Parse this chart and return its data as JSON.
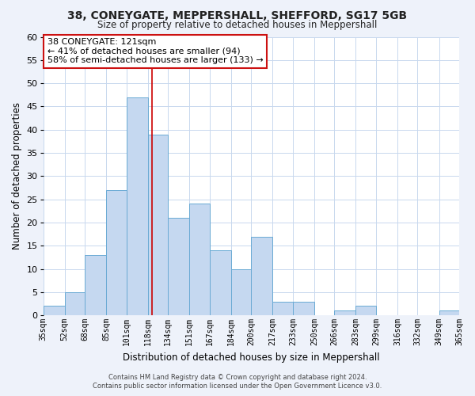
{
  "title": "38, CONEYGATE, MEPPERSHALL, SHEFFORD, SG17 5GB",
  "subtitle": "Size of property relative to detached houses in Meppershall",
  "xlabel": "Distribution of detached houses by size in Meppershall",
  "ylabel": "Number of detached properties",
  "bar_edges": [
    35,
    52,
    68,
    85,
    101,
    118,
    134,
    151,
    167,
    184,
    200,
    217,
    233,
    250,
    266,
    283,
    299,
    316,
    332,
    349,
    365
  ],
  "bar_heights": [
    2,
    5,
    13,
    27,
    47,
    39,
    21,
    24,
    14,
    10,
    17,
    3,
    3,
    0,
    1,
    2,
    0,
    0,
    0,
    1
  ],
  "bar_color": "#c5d8f0",
  "bar_edgecolor": "#6aaad4",
  "vline_x": 121,
  "vline_color": "#cc0000",
  "ylim": [
    0,
    60
  ],
  "yticks": [
    0,
    5,
    10,
    15,
    20,
    25,
    30,
    35,
    40,
    45,
    50,
    55,
    60
  ],
  "x_tick_labels": [
    "35sqm",
    "52sqm",
    "68sqm",
    "85sqm",
    "101sqm",
    "118sqm",
    "134sqm",
    "151sqm",
    "167sqm",
    "184sqm",
    "200sqm",
    "217sqm",
    "233sqm",
    "250sqm",
    "266sqm",
    "283sqm",
    "299sqm",
    "316sqm",
    "332sqm",
    "349sqm",
    "365sqm"
  ],
  "annotation_title": "38 CONEYGATE: 121sqm",
  "annotation_line1": "← 41% of detached houses are smaller (94)",
  "annotation_line2": "58% of semi-detached houses are larger (133) →",
  "footer_line1": "Contains HM Land Registry data © Crown copyright and database right 2024.",
  "footer_line2": "Contains public sector information licensed under the Open Government Licence v3.0.",
  "background_color": "#eef2fa",
  "plot_background_color": "#ffffff",
  "grid_color": "#c8d8ee"
}
